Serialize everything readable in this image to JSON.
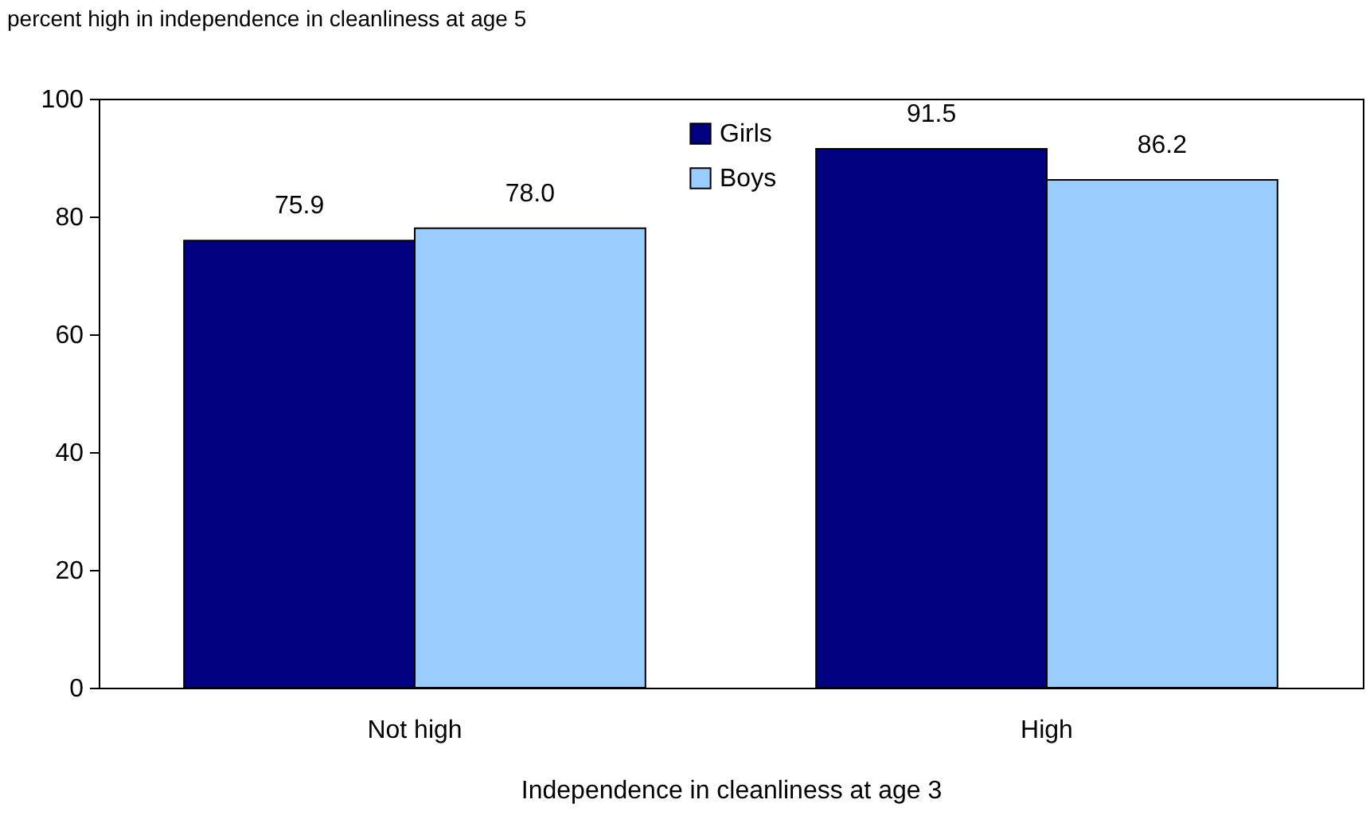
{
  "chart_data": {
    "type": "bar",
    "ylabel": "percent high in independence in cleanliness at age 5",
    "xlabel": "Independence in cleanliness at age 3",
    "categories": [
      "Not high",
      "High"
    ],
    "series": [
      {
        "name": "Girls",
        "color": "#000080",
        "values": [
          75.9,
          91.5
        ]
      },
      {
        "name": "Boys",
        "color": "#99ccff",
        "values": [
          78.0,
          86.2
        ]
      }
    ],
    "value_labels": [
      [
        "75.9",
        "91.5"
      ],
      [
        "78.0",
        "86.2"
      ]
    ],
    "ylim": [
      0,
      100
    ],
    "yticks": [
      0,
      20,
      40,
      60,
      80,
      100
    ],
    "grid": false,
    "legend": "top"
  }
}
